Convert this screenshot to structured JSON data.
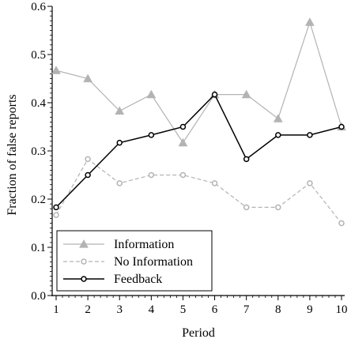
{
  "chart_data": {
    "type": "line",
    "xlabel": "Period",
    "ylabel": "Fraction of false reports",
    "x": [
      1,
      2,
      3,
      4,
      5,
      6,
      7,
      8,
      9,
      10
    ],
    "x_ticks": [
      "1",
      "2",
      "3",
      "4",
      "5",
      "6",
      "7",
      "8",
      "9",
      "10"
    ],
    "xlim": [
      1,
      10
    ],
    "ylim": [
      0,
      0.6
    ],
    "y_ticks": [
      "0.0",
      "0.1",
      "0.2",
      "0.3",
      "0.4",
      "0.5",
      "0.6"
    ],
    "y_tick_values": [
      0,
      0.1,
      0.2,
      0.3,
      0.4,
      0.5,
      0.6
    ],
    "grid": false,
    "legend_position": "bottom-left",
    "series": [
      {
        "name": "Information",
        "values": [
          0.467,
          0.45,
          0.383,
          0.417,
          0.317,
          0.417,
          0.417,
          0.367,
          0.567,
          0.35
        ],
        "color": "#b3b3b3",
        "line_style": "solid",
        "marker": "filled-triangle"
      },
      {
        "name": "No Information",
        "values": [
          0.167,
          0.283,
          0.233,
          0.25,
          0.25,
          0.233,
          0.183,
          0.183,
          0.233,
          0.15
        ],
        "color": "#b3b3b3",
        "line_style": "dashed",
        "marker": "hollow-circle"
      },
      {
        "name": "Feedback",
        "values": [
          0.183,
          0.25,
          0.317,
          0.333,
          0.35,
          0.417,
          0.283,
          0.333,
          0.333,
          0.35
        ],
        "color": "#000000",
        "line_style": "solid",
        "marker": "hollow-circle"
      }
    ]
  }
}
